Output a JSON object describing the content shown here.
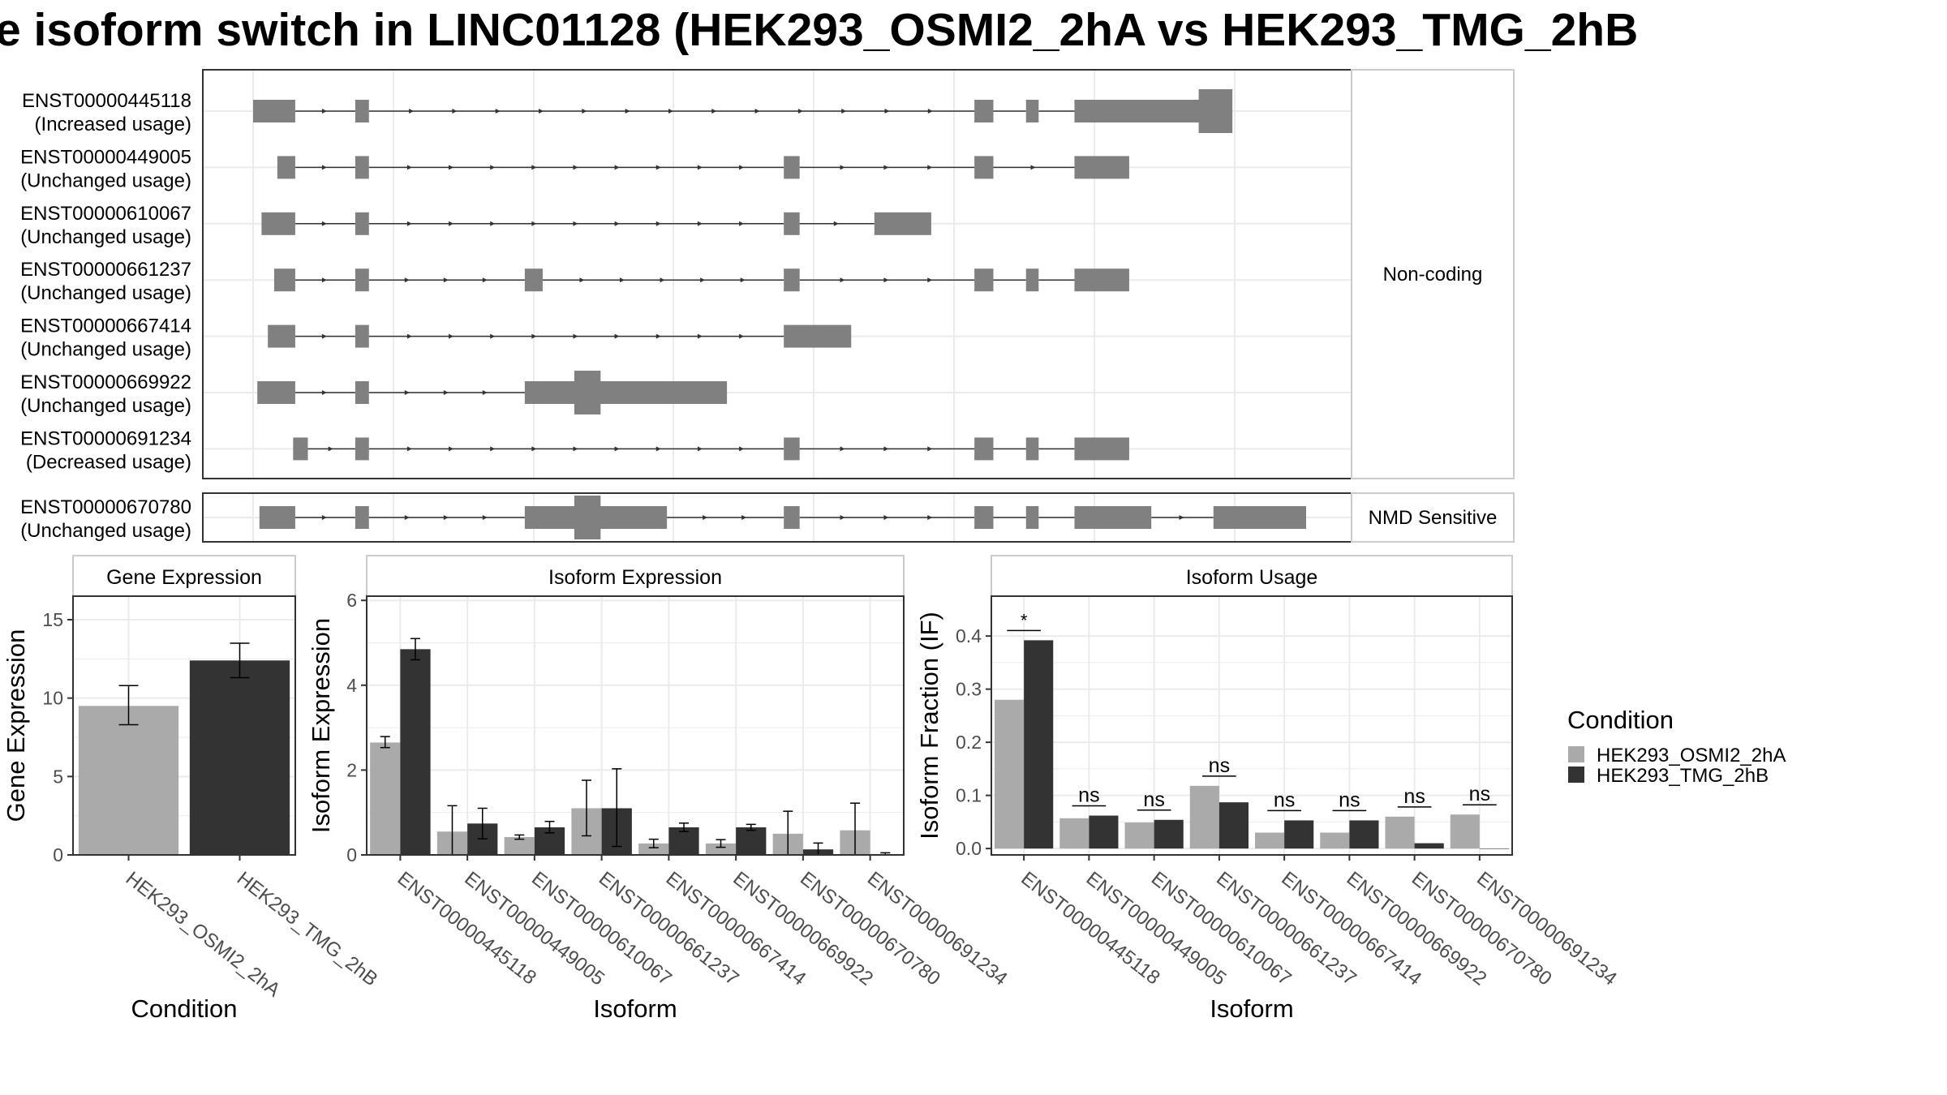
{
  "title": "e isoform switch in LINC01128 (HEK293_OSMI2_2hA vs HEK293_TMG_2hB",
  "colors": {
    "exon": "#808080",
    "intron": "#333333",
    "cond_a": "#aaaaaa",
    "cond_b": "#333333",
    "grid": "#ebebeb",
    "panel_border": "#333333",
    "strip_border": "#cccccc"
  },
  "structure": {
    "genomic_range": [
      0,
      100
    ],
    "facets": [
      {
        "label": "Non-coding",
        "isoforms": [
          {
            "id": "ENST00000445118",
            "usage": "(Increased usage)",
            "exons": [
              [
                0,
                4
              ],
              [
                9.7,
                11
              ],
              [
                68.5,
                70.3
              ],
              [
                73.4,
                74.6
              ],
              [
                78,
                90.2
              ]
            ],
            "thick": [
              [
                89.8,
                93
              ]
            ]
          },
          {
            "id": "ENST00000449005",
            "usage": "(Unchanged usage)",
            "exons": [
              [
                2.3,
                4
              ],
              [
                9.7,
                11
              ],
              [
                50.4,
                51.9
              ],
              [
                68.5,
                70.3
              ],
              [
                78,
                83.2
              ]
            ],
            "thick": []
          },
          {
            "id": "ENST00000610067",
            "usage": "(Unchanged usage)",
            "exons": [
              [
                0.8,
                4
              ],
              [
                9.7,
                11
              ],
              [
                50.4,
                51.9
              ],
              [
                59,
                64.4
              ]
            ],
            "thick": []
          },
          {
            "id": "ENST00000661237",
            "usage": "(Unchanged usage)",
            "exons": [
              [
                2,
                4
              ],
              [
                9.7,
                11
              ],
              [
                25.8,
                27.5
              ],
              [
                50.4,
                51.9
              ],
              [
                68.5,
                70.3
              ],
              [
                73.4,
                74.6
              ],
              [
                78,
                83.2
              ]
            ],
            "thick": []
          },
          {
            "id": "ENST00000667414",
            "usage": "(Unchanged usage)",
            "exons": [
              [
                1.4,
                4
              ],
              [
                9.7,
                11
              ],
              [
                50.4,
                56.8
              ]
            ],
            "thick": []
          },
          {
            "id": "ENST00000669922",
            "usage": "(Unchanged usage)",
            "exons": [
              [
                0.4,
                4
              ],
              [
                9.7,
                11
              ],
              [
                25.8,
                45
              ]
            ],
            "thick": [
              [
                30.5,
                33
              ]
            ]
          },
          {
            "id": "ENST00000691234",
            "usage": "(Decreased usage)",
            "exons": [
              [
                3.8,
                5.2
              ],
              [
                9.7,
                11
              ],
              [
                50.4,
                51.9
              ],
              [
                68.5,
                70.3
              ],
              [
                73.4,
                74.6
              ],
              [
                78,
                83.2
              ]
            ],
            "thick": []
          }
        ]
      },
      {
        "label": "NMD Sensitive",
        "isoforms": [
          {
            "id": "ENST00000670780",
            "usage": "(Unchanged usage)",
            "exons": [
              [
                0.6,
                4
              ],
              [
                9.7,
                11
              ],
              [
                25.8,
                39.3
              ],
              [
                50.4,
                51.9
              ],
              [
                68.5,
                70.3
              ],
              [
                73.4,
                74.6
              ],
              [
                78,
                85.3
              ],
              [
                91.2,
                100
              ]
            ],
            "thick": [
              [
                30.5,
                33
              ]
            ]
          }
        ]
      }
    ]
  },
  "chart_data": [
    {
      "type": "bar",
      "title": "Gene Expression",
      "xlabel": "Condition",
      "ylabel": "Gene Expression",
      "ylim": [
        0,
        16.5
      ],
      "yticks": [
        0,
        5,
        10,
        15
      ],
      "categories": [
        "HEK293_OSMI2_2hA",
        "HEK293_TMG_2hB"
      ],
      "values": [
        9.5,
        12.4
      ],
      "errors": [
        [
          8.3,
          10.8
        ],
        [
          11.3,
          13.5
        ]
      ]
    },
    {
      "type": "bar",
      "title": "Isoform Expression",
      "xlabel": "Isoform",
      "ylabel": "Isoform Expression",
      "ylim": [
        0,
        6.1
      ],
      "yticks": [
        0,
        2,
        4,
        6
      ],
      "categories": [
        "ENST00000445118",
        "ENST00000449005",
        "ENST00000610067",
        "ENST00000661237",
        "ENST00000667414",
        "ENST00000669922",
        "ENST00000670780",
        "ENST00000691234"
      ],
      "series": [
        {
          "name": "HEK293_OSMI2_2hA",
          "values": [
            2.65,
            0.55,
            0.42,
            1.1,
            0.27,
            0.27,
            0.5,
            0.58
          ],
          "errors": [
            [
              2.53,
              2.79
            ],
            [
              0,
              1.16
            ],
            [
              0.37,
              0.47
            ],
            [
              0.45,
              1.76
            ],
            [
              0.17,
              0.37
            ],
            [
              0.18,
              0.36
            ],
            [
              0,
              1.03
            ],
            [
              0,
              1.22
            ]
          ]
        },
        {
          "name": "HEK293_TMG_2hB",
          "values": [
            4.85,
            0.74,
            0.65,
            1.1,
            0.65,
            0.65,
            0.13,
            0.02
          ],
          "errors": [
            [
              4.6,
              5.1
            ],
            [
              0.38,
              1.1
            ],
            [
              0.52,
              0.79
            ],
            [
              0.2,
              2.03
            ],
            [
              0.55,
              0.75
            ],
            [
              0.58,
              0.72
            ],
            [
              0,
              0.28
            ],
            [
              0,
              0.05
            ]
          ]
        }
      ]
    },
    {
      "type": "bar",
      "title": "Isoform Usage",
      "xlabel": "Isoform",
      "ylabel": "Isoform Fraction (IF)",
      "ylim": [
        -0.012,
        0.475
      ],
      "yticks": [
        0.0,
        0.1,
        0.2,
        0.3,
        0.4
      ],
      "ytick_labels": [
        "0.0",
        "0.1",
        "0.2",
        "0.3",
        "0.4"
      ],
      "categories": [
        "ENST00000445118",
        "ENST00000449005",
        "ENST00000610067",
        "ENST00000661237",
        "ENST00000667414",
        "ENST00000669922",
        "ENST00000670780",
        "ENST00000691234"
      ],
      "series": [
        {
          "name": "HEK293_OSMI2_2hA",
          "values": [
            0.28,
            0.057,
            0.049,
            0.118,
            0.03,
            0.03,
            0.06,
            0.064
          ]
        },
        {
          "name": "HEK293_TMG_2hB",
          "values": [
            0.392,
            0.062,
            0.054,
            0.087,
            0.053,
            0.053,
            0.01,
            0.0
          ]
        }
      ],
      "significance": [
        "*",
        "ns",
        "ns",
        "ns",
        "ns",
        "ns",
        "ns",
        "ns"
      ]
    }
  ],
  "legend": {
    "title": "Condition",
    "items": [
      "HEK293_OSMI2_2hA",
      "HEK293_TMG_2hB"
    ]
  }
}
